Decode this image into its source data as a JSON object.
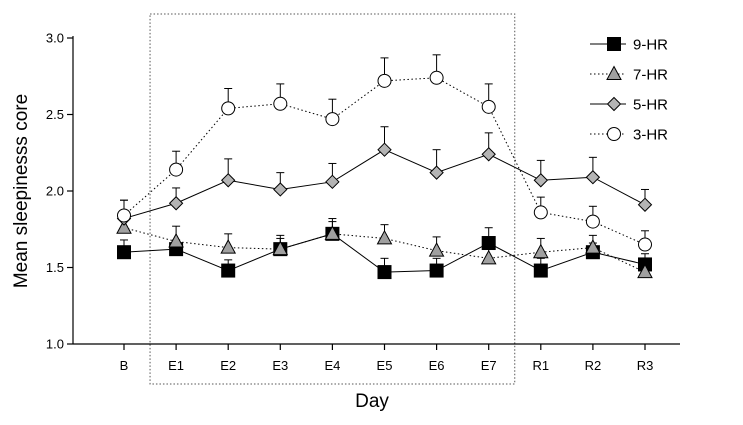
{
  "chart_data": {
    "type": "line",
    "title": "",
    "xlabel": "Day",
    "ylabel": "Mean sleepinesss core",
    "categories": [
      "B",
      "E1",
      "E2",
      "E3",
      "E4",
      "E5",
      "E6",
      "E7",
      "R1",
      "R2",
      "R3"
    ],
    "ylim": [
      1.0,
      3.0
    ],
    "yticks": [
      "1.0",
      "1.5",
      "2.0",
      "2.5",
      "3.0"
    ],
    "grid": false,
    "legend_position": "top-right",
    "shaded_region": {
      "from": "E1",
      "to": "E7",
      "style": "dotted-box"
    },
    "series": [
      {
        "name": "9-HR",
        "marker": "square",
        "fill": "#000000",
        "line": "solid",
        "values": [
          1.6,
          1.62,
          1.48,
          1.62,
          1.72,
          1.47,
          1.48,
          1.66,
          1.48,
          1.6,
          1.52
        ],
        "error_up": [
          0.08,
          0.06,
          0.07,
          0.07,
          0.08,
          0.09,
          0.08,
          0.1,
          0.08,
          0.06,
          0.07
        ]
      },
      {
        "name": "7-HR",
        "marker": "triangle",
        "fill": "#a0a0a0",
        "line": "dotted",
        "values": [
          1.76,
          1.67,
          1.63,
          1.62,
          1.72,
          1.69,
          1.61,
          1.56,
          1.6,
          1.63,
          1.47
        ],
        "error_up": [
          0.08,
          0.1,
          0.09,
          0.09,
          0.1,
          0.09,
          0.09,
          0.11,
          0.09,
          0.08,
          0.08
        ]
      },
      {
        "name": "5-HR",
        "marker": "diamond",
        "fill": "#b4b4b4",
        "line": "solid",
        "values": [
          1.82,
          1.92,
          2.07,
          2.01,
          2.06,
          2.27,
          2.12,
          2.24,
          2.07,
          2.09,
          1.91
        ],
        "error_up": [
          0.12,
          0.1,
          0.14,
          0.11,
          0.12,
          0.15,
          0.15,
          0.14,
          0.13,
          0.13,
          0.1
        ]
      },
      {
        "name": "3-HR",
        "marker": "circle",
        "fill": "#ffffff",
        "line": "dotted",
        "values": [
          1.84,
          2.14,
          2.54,
          2.57,
          2.47,
          2.72,
          2.74,
          2.55,
          1.86,
          1.8,
          1.65
        ],
        "error_up": [
          0.1,
          0.12,
          0.13,
          0.13,
          0.13,
          0.15,
          0.15,
          0.15,
          0.1,
          0.1,
          0.09
        ]
      }
    ]
  }
}
